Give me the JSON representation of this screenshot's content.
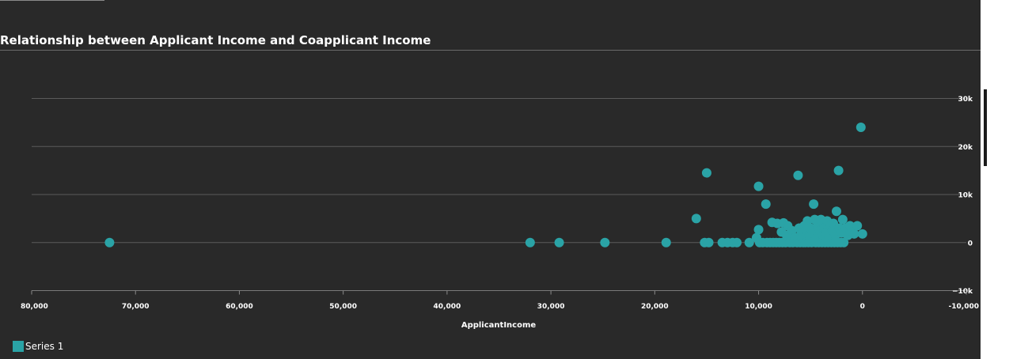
{
  "chart_data": {
    "type": "scatter",
    "title": "Relationship between Applicant Income and Coapplicant Income",
    "xlabel": "ApplicantIncome",
    "ylabel": "",
    "xlim": [
      80000,
      -10000
    ],
    "ylim": [
      -10000,
      30000
    ],
    "x_ticks": [
      {
        "value": 80000,
        "label": "80,000"
      },
      {
        "value": 70000,
        "label": "70,000"
      },
      {
        "value": 60000,
        "label": "60,000"
      },
      {
        "value": 50000,
        "label": "50,000"
      },
      {
        "value": 40000,
        "label": "40,000"
      },
      {
        "value": 30000,
        "label": "30,000"
      },
      {
        "value": 20000,
        "label": "20,000"
      },
      {
        "value": 10000,
        "label": "10,000"
      },
      {
        "value": 0,
        "label": "0"
      },
      {
        "value": -10000,
        "label": "-10,000"
      }
    ],
    "y_ticks": [
      {
        "value": 30000,
        "label": "30k"
      },
      {
        "value": 20000,
        "label": "20k"
      },
      {
        "value": 10000,
        "label": "10k"
      },
      {
        "value": 0,
        "label": "0"
      },
      {
        "value": -10000,
        "label": "−10k"
      }
    ],
    "grid": true,
    "legend_position": "bottom-left",
    "series": [
      {
        "name": "Series 1",
        "color": "#2aa3a6",
        "points": [
          [
            72500,
            0
          ],
          [
            32000,
            0
          ],
          [
            29200,
            0
          ],
          [
            24800,
            0
          ],
          [
            18900,
            0
          ],
          [
            16000,
            5000
          ],
          [
            15000,
            14500
          ],
          [
            15200,
            0
          ],
          [
            14800,
            0
          ],
          [
            13500,
            0
          ],
          [
            13000,
            0
          ],
          [
            12500,
            0
          ],
          [
            12100,
            0
          ],
          [
            10900,
            0
          ],
          [
            10200,
            1000
          ],
          [
            10000,
            11700
          ],
          [
            10000,
            2700
          ],
          [
            9900,
            0
          ],
          [
            9600,
            0
          ],
          [
            9300,
            8000
          ],
          [
            9200,
            0
          ],
          [
            8900,
            0
          ],
          [
            8700,
            4200
          ],
          [
            8600,
            0
          ],
          [
            8300,
            0
          ],
          [
            8200,
            4000
          ],
          [
            8000,
            0
          ],
          [
            7800,
            2200
          ],
          [
            7700,
            0
          ],
          [
            7600,
            4100
          ],
          [
            7400,
            0
          ],
          [
            7300,
            1500
          ],
          [
            7200,
            3500
          ],
          [
            7000,
            0
          ],
          [
            6800,
            2500
          ],
          [
            6700,
            0
          ],
          [
            6500,
            1000
          ],
          [
            6300,
            0
          ],
          [
            6200,
            14000
          ],
          [
            6100,
            3000
          ],
          [
            6000,
            0
          ],
          [
            5900,
            2000
          ],
          [
            5800,
            1000
          ],
          [
            5700,
            0
          ],
          [
            5600,
            3500
          ],
          [
            5500,
            0
          ],
          [
            5400,
            2500
          ],
          [
            5300,
            4500
          ],
          [
            5200,
            0
          ],
          [
            5100,
            1500
          ],
          [
            5000,
            3000
          ],
          [
            4900,
            0
          ],
          [
            4800,
            2000
          ],
          [
            4700,
            8000
          ],
          [
            4600,
            4800
          ],
          [
            4500,
            0
          ],
          [
            4400,
            1000
          ],
          [
            4300,
            3500
          ],
          [
            4200,
            0
          ],
          [
            4100,
            2500
          ],
          [
            4000,
            4800
          ],
          [
            3900,
            0
          ],
          [
            3800,
            1500
          ],
          [
            3700,
            3000
          ],
          [
            3600,
            0
          ],
          [
            3500,
            2000
          ],
          [
            3400,
            4500
          ],
          [
            3300,
            0
          ],
          [
            3200,
            1000
          ],
          [
            3100,
            3500
          ],
          [
            3000,
            0
          ],
          [
            2900,
            2500
          ],
          [
            2800,
            4000
          ],
          [
            2700,
            0
          ],
          [
            2600,
            1500
          ],
          [
            2500,
            6500
          ],
          [
            2400,
            0
          ],
          [
            2300,
            15000
          ],
          [
            2200,
            3000
          ],
          [
            2100,
            0
          ],
          [
            2000,
            2000
          ],
          [
            1900,
            4800
          ],
          [
            1800,
            0
          ],
          [
            1600,
            3000
          ],
          [
            1400,
            1500
          ],
          [
            1200,
            3500
          ],
          [
            1000,
            2200
          ],
          [
            800,
            1800
          ],
          [
            500,
            3500
          ],
          [
            150,
            24000
          ],
          [
            0,
            1800
          ]
        ]
      }
    ]
  }
}
